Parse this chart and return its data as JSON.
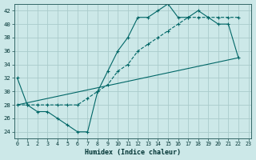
{
  "xlabel": "Humidex (Indice chaleur)",
  "bg_color": "#cce8e8",
  "grid_color": "#aacccc",
  "line_color": "#006666",
  "xlim": [
    -0.3,
    23.3
  ],
  "ylim": [
    23,
    43
  ],
  "xticks": [
    0,
    1,
    2,
    3,
    4,
    5,
    6,
    7,
    8,
    9,
    10,
    11,
    12,
    13,
    14,
    15,
    16,
    17,
    18,
    19,
    20,
    21,
    22,
    23
  ],
  "yticks": [
    24,
    26,
    28,
    30,
    32,
    34,
    36,
    38,
    40,
    42
  ],
  "series": [
    {
      "x": [
        0,
        1,
        2,
        3,
        4,
        5,
        6,
        7,
        8,
        9,
        10,
        11,
        12,
        13,
        14,
        15,
        16,
        17,
        18,
        19,
        20,
        21,
        22
      ],
      "y": [
        32,
        28,
        27,
        27,
        26,
        25,
        24,
        24,
        30,
        33,
        36,
        38,
        41,
        41,
        42,
        43,
        41,
        41,
        42,
        41,
        40,
        40,
        35
      ],
      "linestyle": "-",
      "marker": "+"
    },
    {
      "x": [
        0,
        1,
        2,
        3,
        4,
        5,
        6,
        7,
        8,
        9,
        10,
        11,
        12,
        13,
        14,
        15,
        16,
        17,
        18,
        19,
        20,
        21,
        22
      ],
      "y": [
        28,
        28,
        28,
        28,
        28,
        28,
        28,
        29,
        30,
        31,
        33,
        34,
        36,
        37,
        38,
        39,
        40,
        41,
        41,
        41,
        41,
        41,
        41
      ],
      "linestyle": "--",
      "marker": "+"
    },
    {
      "x": [
        0,
        22
      ],
      "y": [
        28,
        35
      ],
      "linestyle": "-",
      "marker": "none"
    }
  ]
}
